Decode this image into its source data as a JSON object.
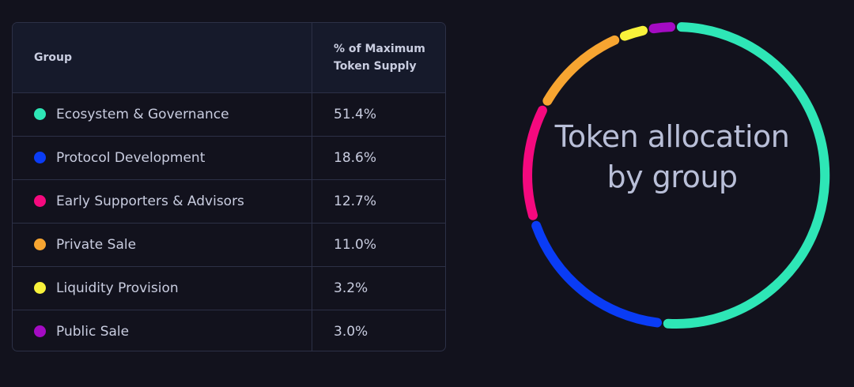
{
  "table": {
    "headers": {
      "group": "Group",
      "supply_line1": "% of Maximum",
      "supply_line2": "Token Supply"
    },
    "rows": [
      {
        "group": "Ecosystem & Governance",
        "percent": "51.4%",
        "color": "#2ee6b6"
      },
      {
        "group": "Protocol Development",
        "percent": "18.6%",
        "color": "#0a3cf5"
      },
      {
        "group": "Early Supporters & Advisors",
        "percent": "12.7%",
        "color": "#f5097e"
      },
      {
        "group": "Private Sale",
        "percent": "11.0%",
        "color": "#f7a531"
      },
      {
        "group": "Liquidity Provision",
        "percent": "3.2%",
        "color": "#f8f23b"
      },
      {
        "group": "Public Sale",
        "percent": "3.0%",
        "color": "#a40bc3"
      }
    ]
  },
  "chart_data": {
    "type": "pie",
    "style": "donut",
    "title": "Token allocation by group",
    "categories": [
      "Ecosystem & Governance",
      "Protocol Development",
      "Early Supporters & Advisors",
      "Private Sale",
      "Liquidity Provision",
      "Public Sale"
    ],
    "values": [
      51.4,
      18.6,
      12.7,
      11.0,
      3.2,
      3.0
    ],
    "colors": [
      "#2ee6b6",
      "#0a3cf5",
      "#f5097e",
      "#f7a531",
      "#f8f23b",
      "#a40bc3"
    ]
  }
}
